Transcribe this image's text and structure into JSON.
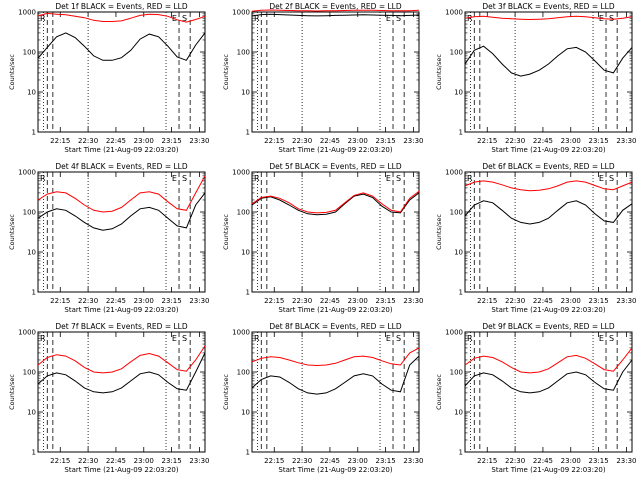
{
  "ylabel": "Counts/sec",
  "xlabel": "Start Time (21-Aug-09 22:03:20)",
  "xticks": [
    "22:15",
    "22:30",
    "22:45",
    "23:00",
    "23:15",
    "23:30"
  ],
  "yticks": [
    "1",
    "10",
    "100",
    "1000"
  ],
  "marker_labels": [
    "E",
    "S"
  ],
  "colors": {
    "events": "#000000",
    "lld": "#ff0000"
  },
  "chart_data": [
    {
      "type": "line",
      "title": "Det 1f BLACK = Events, RED = LLD",
      "ylim": [
        1,
        1000
      ],
      "yscale": "log",
      "legend_mark": "R",
      "x": [
        0,
        5,
        10,
        15,
        20,
        25,
        30,
        35,
        40,
        45,
        50,
        55,
        60,
        65,
        70,
        75,
        80,
        85,
        90
      ],
      "series": [
        {
          "name": "Events",
          "values": [
            70,
            130,
            240,
            300,
            230,
            140,
            80,
            62,
            62,
            72,
            110,
            210,
            280,
            240,
            140,
            75,
            62,
            150,
            300
          ]
        },
        {
          "name": "LLD",
          "values": [
            800,
            920,
            880,
            850,
            780,
            720,
            620,
            580,
            580,
            600,
            700,
            820,
            880,
            860,
            780,
            640,
            560,
            650,
            780
          ]
        }
      ]
    },
    {
      "type": "line",
      "title": "Det 2f BLACK = Events, RED = LLD",
      "ylim": [
        1,
        1000
      ],
      "yscale": "log",
      "legend_mark": "R",
      "x": [
        0,
        5,
        10,
        15,
        20,
        25,
        30,
        35,
        40,
        45,
        50,
        55,
        60,
        65,
        70,
        75,
        80,
        85,
        90
      ],
      "series": [
        {
          "name": "Events",
          "values": [
            800,
            860,
            880,
            860,
            840,
            820,
            810,
            800,
            810,
            820,
            830,
            840,
            850,
            840,
            830,
            820,
            810,
            820,
            840
          ]
        },
        {
          "name": "LLD",
          "values": [
            1050,
            1100,
            1120,
            1100,
            1090,
            1080,
            1070,
            1060,
            1070,
            1080,
            1090,
            1100,
            1110,
            1100,
            1090,
            1080,
            1070,
            1080,
            1100
          ]
        }
      ]
    },
    {
      "type": "line",
      "title": "Det 3f BLACK = Events, RED = LLD",
      "ylim": [
        1,
        1000
      ],
      "yscale": "log",
      "legend_mark": "R",
      "x": [
        0,
        5,
        10,
        15,
        20,
        25,
        30,
        35,
        40,
        45,
        50,
        55,
        60,
        65,
        70,
        75,
        80,
        85,
        90
      ],
      "series": [
        {
          "name": "Events",
          "values": [
            50,
            110,
            140,
            90,
            50,
            30,
            25,
            28,
            35,
            50,
            80,
            120,
            130,
            100,
            60,
            35,
            30,
            70,
            130
          ]
        },
        {
          "name": "LLD",
          "values": [
            700,
            760,
            780,
            740,
            700,
            680,
            660,
            650,
            660,
            680,
            720,
            760,
            780,
            760,
            720,
            680,
            660,
            700,
            760
          ]
        }
      ]
    },
    {
      "type": "line",
      "title": "Det 4f BLACK = Events, RED = LLD",
      "ylim": [
        1,
        1000
      ],
      "yscale": "log",
      "legend_mark": "R",
      "x": [
        0,
        5,
        10,
        15,
        20,
        25,
        30,
        35,
        40,
        45,
        50,
        55,
        60,
        65,
        70,
        75,
        80,
        85,
        90
      ],
      "series": [
        {
          "name": "Events",
          "values": [
            70,
            100,
            120,
            110,
            80,
            55,
            40,
            35,
            38,
            50,
            80,
            120,
            130,
            110,
            70,
            45,
            40,
            150,
            300
          ]
        },
        {
          "name": "LLD",
          "values": [
            200,
            280,
            320,
            300,
            220,
            150,
            110,
            100,
            105,
            130,
            200,
            300,
            320,
            280,
            180,
            120,
            110,
            300,
            800
          ]
        }
      ]
    },
    {
      "type": "line",
      "title": "Det 5f BLACK = Events, RED = LLD",
      "ylim": [
        1,
        1000
      ],
      "yscale": "log",
      "legend_mark": "R",
      "x": [
        0,
        5,
        10,
        15,
        20,
        25,
        30,
        35,
        40,
        45,
        50,
        55,
        60,
        65,
        70,
        75,
        80,
        85,
        90
      ],
      "series": [
        {
          "name": "Events",
          "values": [
            150,
            220,
            240,
            200,
            150,
            110,
            90,
            85,
            88,
            100,
            160,
            250,
            280,
            230,
            140,
            100,
            95,
            200,
            300
          ]
        },
        {
          "name": "LLD",
          "values": [
            160,
            230,
            250,
            220,
            170,
            120,
            100,
            95,
            98,
            110,
            170,
            260,
            300,
            250,
            160,
            110,
            100,
            220,
            330
          ]
        }
      ]
    },
    {
      "type": "line",
      "title": "Det 6f BLACK = Events, RED = LLD",
      "ylim": [
        1,
        1000
      ],
      "yscale": "log",
      "legend_mark": "R",
      "x": [
        0,
        5,
        10,
        15,
        20,
        25,
        30,
        35,
        40,
        45,
        50,
        55,
        60,
        65,
        70,
        75,
        80,
        85,
        90
      ],
      "series": [
        {
          "name": "Events",
          "values": [
            80,
            150,
            190,
            170,
            110,
            70,
            55,
            50,
            55,
            70,
            110,
            170,
            190,
            150,
            90,
            60,
            55,
            110,
            160
          ]
        },
        {
          "name": "LLD",
          "values": [
            450,
            560,
            600,
            560,
            480,
            400,
            360,
            340,
            350,
            380,
            450,
            560,
            600,
            560,
            460,
            380,
            360,
            450,
            560
          ]
        }
      ]
    },
    {
      "type": "line",
      "title": "Det 7f BLACK = Events, RED = LLD",
      "ylim": [
        1,
        1000
      ],
      "yscale": "log",
      "legend_mark": "R",
      "x": [
        0,
        5,
        10,
        15,
        20,
        25,
        30,
        35,
        40,
        45,
        50,
        55,
        60,
        65,
        70,
        75,
        80,
        85,
        90
      ],
      "series": [
        {
          "name": "Events",
          "values": [
            50,
            80,
            95,
            85,
            60,
            40,
            32,
            30,
            32,
            40,
            60,
            90,
            100,
            85,
            55,
            38,
            35,
            100,
            300
          ]
        },
        {
          "name": "LLD",
          "values": [
            150,
            230,
            270,
            250,
            190,
            130,
            100,
            95,
            100,
            120,
            180,
            260,
            290,
            250,
            170,
            115,
            105,
            200,
            450
          ]
        }
      ]
    },
    {
      "type": "line",
      "title": "Det 8f BLACK = Events, RED = LLD",
      "ylim": [
        1,
        1000
      ],
      "yscale": "log",
      "legend_mark": "R",
      "x": [
        0,
        5,
        10,
        15,
        20,
        25,
        30,
        35,
        40,
        45,
        50,
        55,
        60,
        65,
        70,
        75,
        80,
        85,
        90
      ],
      "series": [
        {
          "name": "Events",
          "values": [
            40,
            65,
            80,
            75,
            55,
            38,
            30,
            28,
            30,
            38,
            55,
            80,
            90,
            80,
            50,
            35,
            32,
            150,
            250
          ]
        },
        {
          "name": "LLD",
          "values": [
            180,
            220,
            240,
            230,
            200,
            170,
            150,
            145,
            150,
            165,
            200,
            240,
            250,
            230,
            190,
            160,
            150,
            300,
            400
          ]
        }
      ]
    },
    {
      "type": "line",
      "title": "Det 9f BLACK = Events, RED = LLD",
      "ylim": [
        1,
        1000
      ],
      "yscale": "log",
      "legend_mark": "R",
      "x": [
        0,
        5,
        10,
        15,
        20,
        25,
        30,
        35,
        40,
        45,
        50,
        55,
        60,
        65,
        70,
        75,
        80,
        85,
        90
      ],
      "series": [
        {
          "name": "Events",
          "values": [
            45,
            80,
            95,
            85,
            60,
            40,
            32,
            30,
            32,
            40,
            60,
            90,
            100,
            85,
            55,
            38,
            35,
            100,
            200
          ]
        },
        {
          "name": "LLD",
          "values": [
            150,
            220,
            250,
            230,
            180,
            130,
            100,
            95,
            100,
            120,
            170,
            240,
            260,
            220,
            160,
            115,
            105,
            200,
            400
          ]
        }
      ]
    }
  ]
}
